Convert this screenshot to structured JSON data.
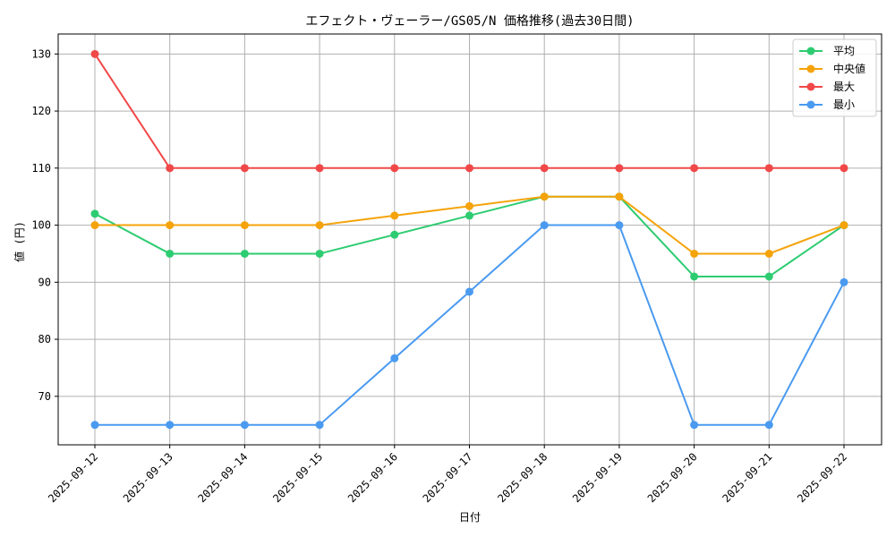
{
  "chart_data": {
    "type": "line",
    "title": "エフェクト・ヴェーラー/GS05/N 価格推移(過去30日間)",
    "xlabel": "日付",
    "ylabel": "値 (円)",
    "categories": [
      "2025-09-12",
      "2025-09-13",
      "2025-09-14",
      "2025-09-15",
      "2025-09-16",
      "2025-09-17",
      "2025-09-18",
      "2025-09-19",
      "2025-09-20",
      "2025-09-21",
      "2025-09-22"
    ],
    "ylim": [
      61.5,
      133.5
    ],
    "yticks": [
      70,
      80,
      90,
      100,
      110,
      120,
      130
    ],
    "grid": true,
    "legend_position": "top-right",
    "series": [
      {
        "name": "平均",
        "color": "#2ecc71",
        "values": [
          102,
          95,
          95,
          95,
          98.33,
          101.67,
          105,
          105,
          91,
          91,
          100
        ]
      },
      {
        "name": "中央値",
        "color": "#f5a30a",
        "values": [
          100,
          100,
          100,
          100,
          101.67,
          103.33,
          105,
          105,
          95,
          95,
          100
        ]
      },
      {
        "name": "最大",
        "color": "#f04848",
        "values": [
          130,
          110,
          110,
          110,
          110,
          110,
          110,
          110,
          110,
          110,
          110
        ]
      },
      {
        "name": "最小",
        "color": "#4a9af0",
        "values": [
          65,
          65,
          65,
          65,
          76.67,
          88.33,
          100,
          100,
          65,
          65,
          90
        ]
      }
    ]
  }
}
